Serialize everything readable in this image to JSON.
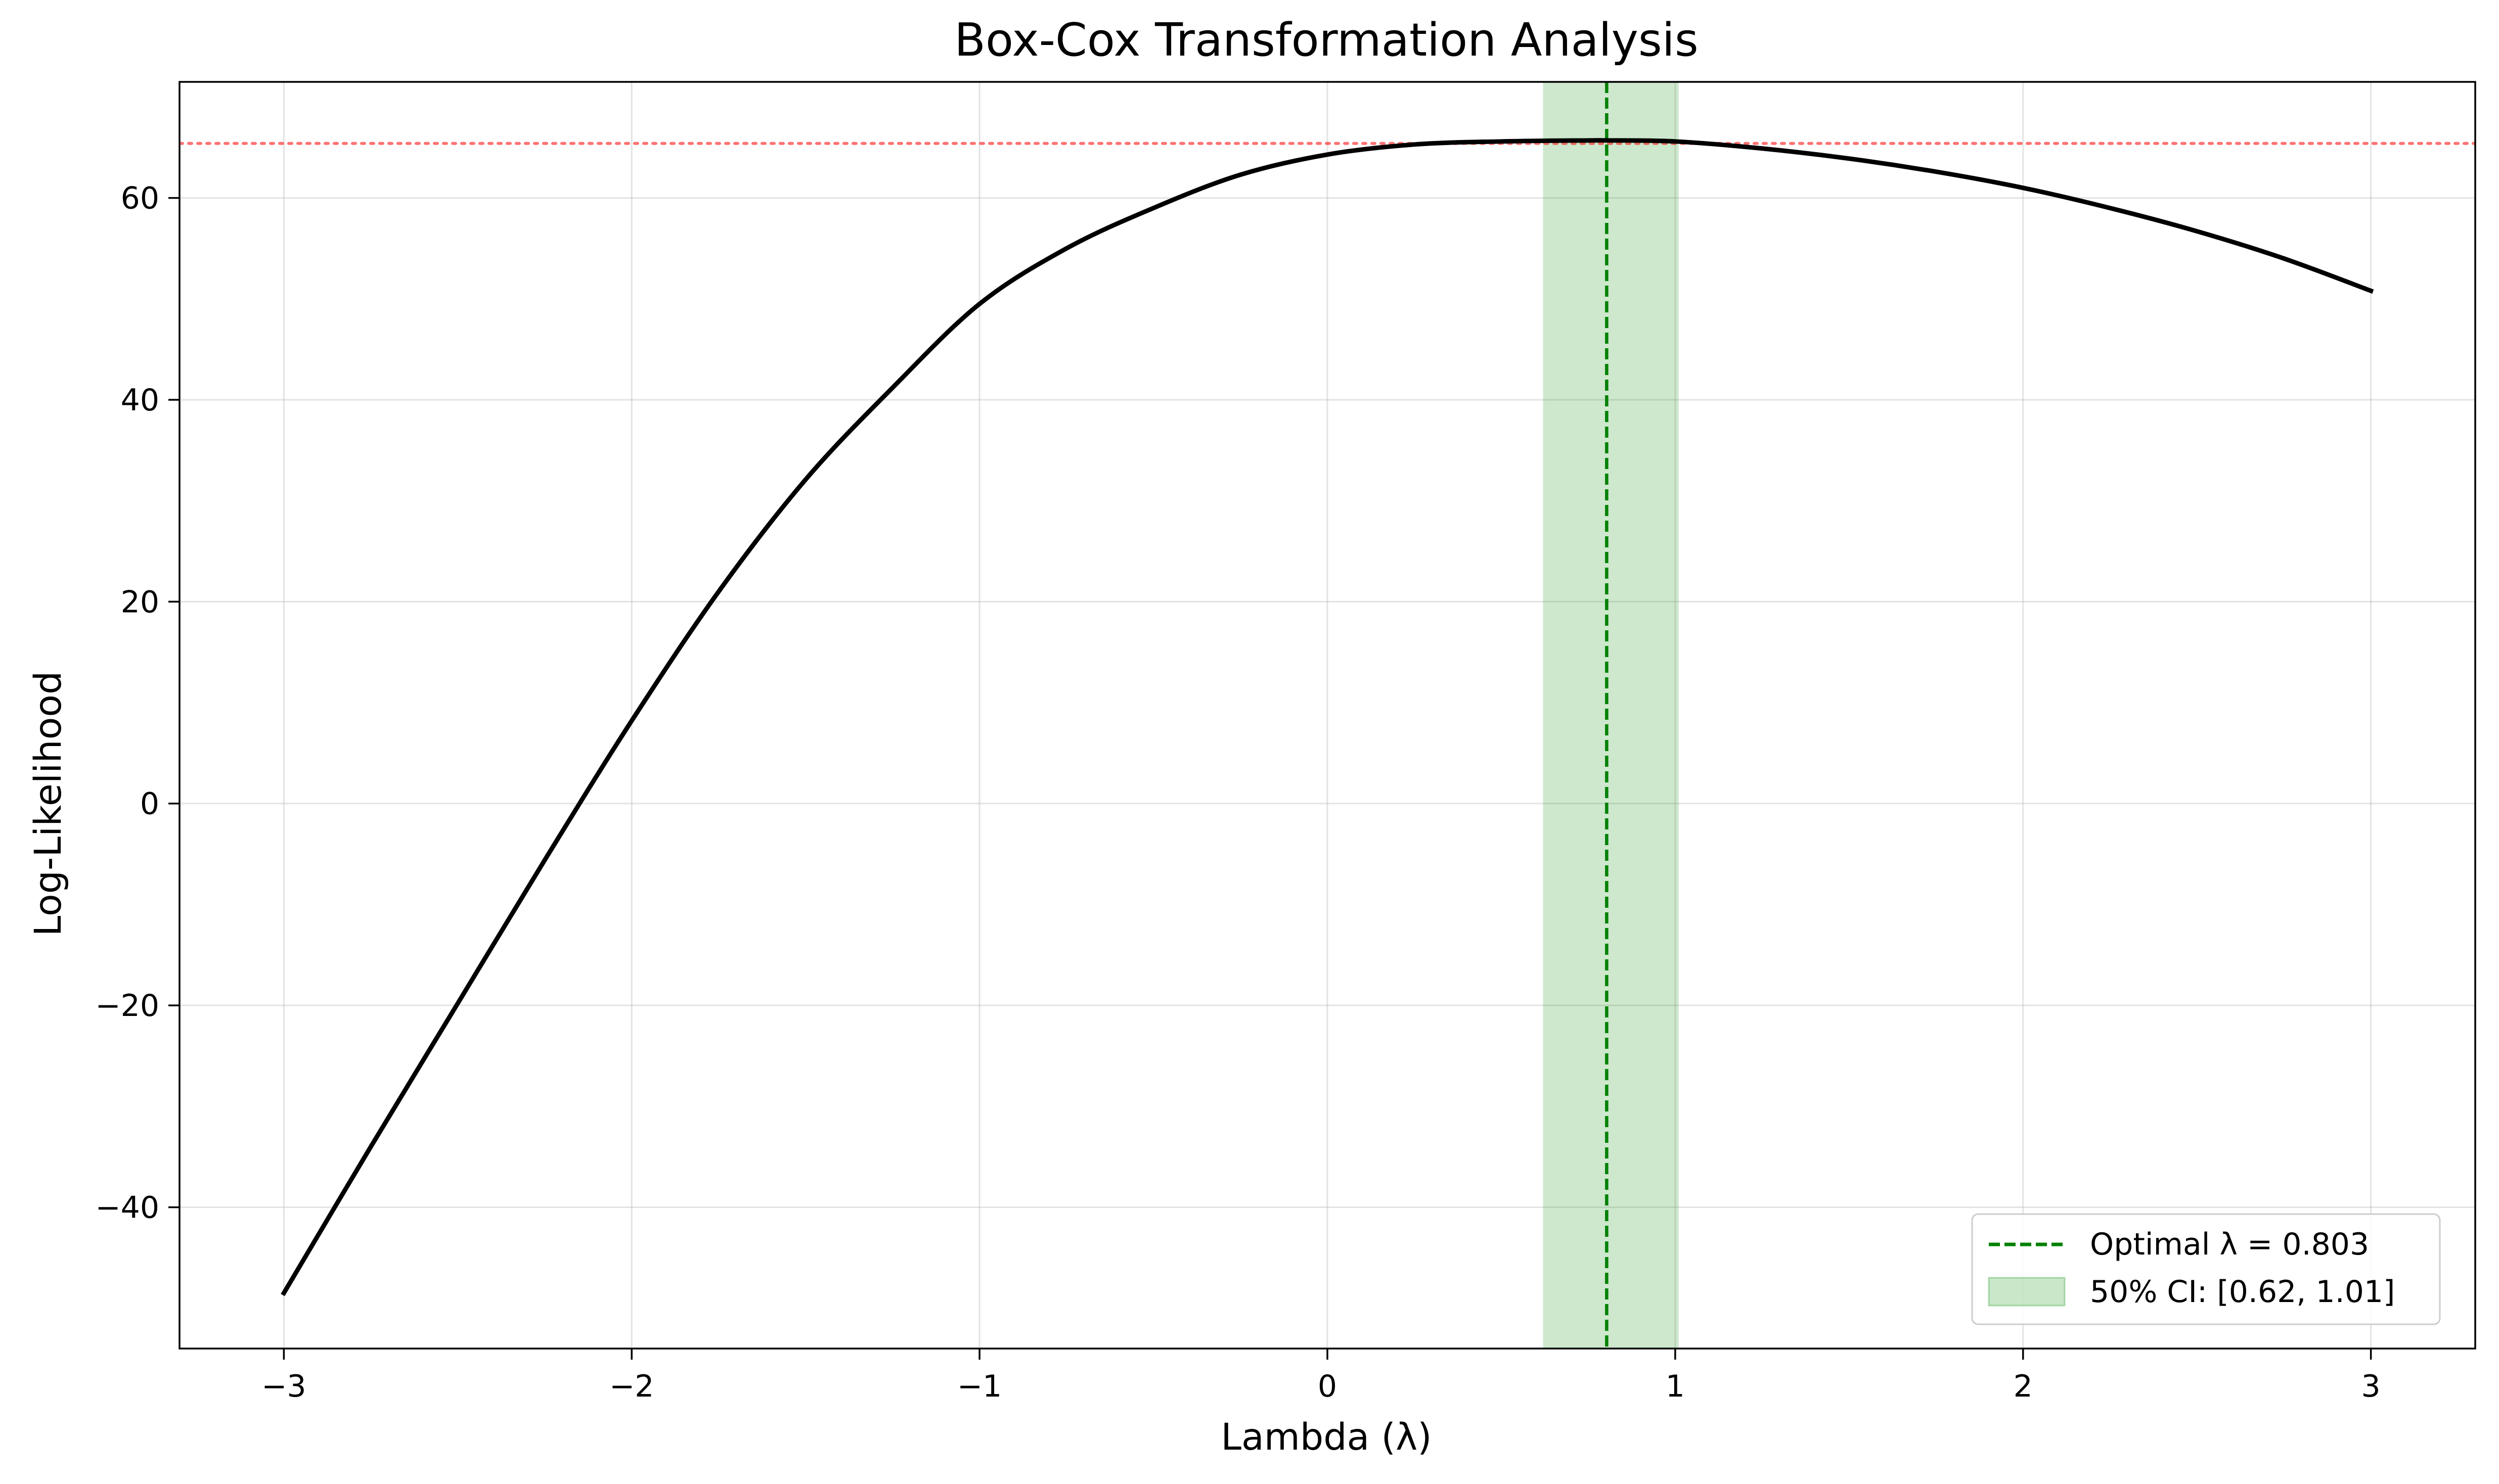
{
  "chart_data": {
    "type": "line",
    "title": "Box-Cox Transformation Analysis",
    "xlabel": "Lambda (λ)",
    "ylabel": "Log-Likelihood",
    "xlim": [
      -3.3,
      3.3
    ],
    "ylim": [
      -54,
      71.5
    ],
    "grid": true,
    "x_ticks": [
      -3,
      -2,
      -1,
      0,
      1,
      2,
      3
    ],
    "x_tick_labels": [
      "−3",
      "−2",
      "−1",
      "0",
      "1",
      "2",
      "3"
    ],
    "y_ticks": [
      -40,
      -20,
      0,
      20,
      40,
      60
    ],
    "y_tick_labels": [
      "−40",
      "−20",
      "0",
      "20",
      "40",
      "60"
    ],
    "series": [
      {
        "color": "#000000",
        "x": [
          -3.0,
          -2.75,
          -2.5,
          -2.25,
          -2.0,
          -1.75,
          -1.5,
          -1.25,
          -1.0,
          -0.75,
          -0.5,
          -0.25,
          0.0,
          0.25,
          0.5,
          0.75,
          0.803,
          1.0,
          1.25,
          1.5,
          1.75,
          2.0,
          2.25,
          2.5,
          2.75,
          3.0
        ],
        "y": [
          -48.5,
          -34.0,
          -19.8,
          -5.6,
          8.2,
          21.0,
          32.1,
          41.2,
          49.5,
          55.0,
          59.0,
          62.3,
          64.3,
          65.3,
          65.6,
          65.7,
          65.7,
          65.6,
          64.9,
          63.9,
          62.6,
          61.0,
          59.0,
          56.7,
          54.0,
          50.8
        ]
      }
    ],
    "optimal": {
      "label": "Optimal λ = 0.803",
      "value": 0.803,
      "color": "#008000"
    },
    "ci": {
      "label": "50% CI: [0.62, 1.01]",
      "lower": 0.62,
      "upper": 1.01,
      "color": "#2ca02c"
    },
    "threshold_line": {
      "y": 65.4,
      "color": "#ff0000"
    },
    "legend_position": "lower-right"
  }
}
